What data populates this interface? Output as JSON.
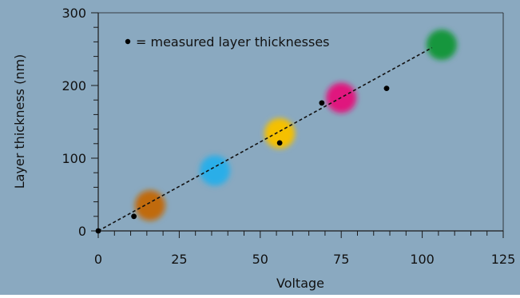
{
  "colors": {
    "background": "#8aa9c0",
    "axis": "#1a1a1a",
    "trend": "#111111",
    "point": "#000000"
  },
  "legend_text": "= measured layer thicknesses",
  "chart_data": {
    "type": "scatter",
    "xlabel": "Voltage",
    "ylabel": "Layer thickness (nm)",
    "xlim": [
      0,
      125
    ],
    "ylim": [
      0,
      300
    ],
    "xticks": [
      0,
      25,
      50,
      75,
      100,
      125
    ],
    "yticks": [
      0,
      100,
      200,
      300
    ],
    "grid": false,
    "legend_position": "top-left",
    "series": [
      {
        "name": "measured layer thicknesses",
        "points": [
          {
            "x": 0,
            "y": 0
          },
          {
            "x": 11,
            "y": 20
          },
          {
            "x": 56,
            "y": 121
          },
          {
            "x": 69,
            "y": 176
          },
          {
            "x": 89,
            "y": 196
          }
        ]
      }
    ],
    "trend_line": {
      "x": [
        0,
        103
      ],
      "y": [
        0,
        252
      ]
    },
    "color_spots": [
      {
        "x": 16,
        "y": 35,
        "color": "#c06a10"
      },
      {
        "x": 36,
        "y": 83,
        "color": "#29aee8"
      },
      {
        "x": 56,
        "y": 134,
        "color": "#f5c000"
      },
      {
        "x": 75,
        "y": 183,
        "color": "#e0167e"
      },
      {
        "x": 106,
        "y": 256,
        "color": "#14963c"
      }
    ]
  }
}
